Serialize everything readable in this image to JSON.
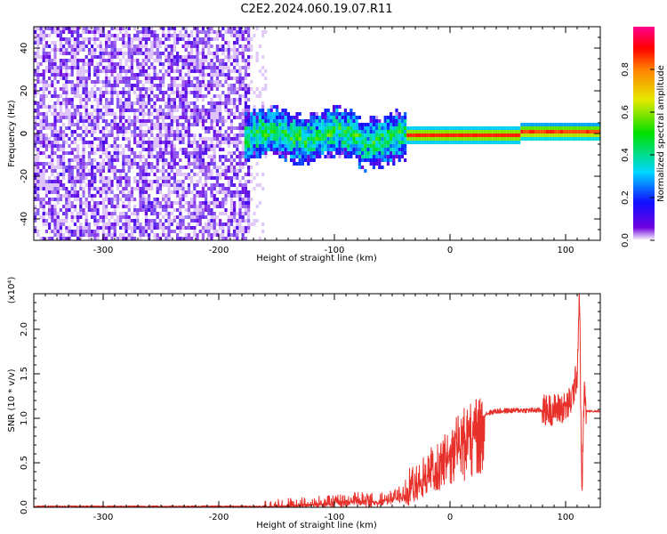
{
  "figure": {
    "title": "C2E2.2024.060.19.07.R11"
  },
  "chart_data": [
    {
      "type": "heatmap",
      "xlabel": "Height of straight line (km)",
      "ylabel": "Frequency (Hz)",
      "xlim": [
        -360,
        130
      ],
      "ylim": [
        -50,
        50
      ],
      "x_ticks": [
        -300,
        -200,
        -100,
        0,
        100
      ],
      "y_ticks": [
        -40,
        -20,
        0,
        20,
        40
      ],
      "colorbar": {
        "label": "Normalized spectral amplitude",
        "range": [
          0,
          1
        ],
        "ticks": [
          "0.0",
          "0.2",
          "0.4",
          "0.6",
          "0.8"
        ],
        "colormap": "rainbow (purple to magenta)"
      },
      "regions": [
        {
          "name": "broadband noise",
          "x_range": [
            -360,
            -175
          ],
          "freq_range": [
            -50,
            50
          ],
          "amplitude": 0.1
        },
        {
          "name": "noisy tail",
          "x_range": [
            -175,
            -160
          ],
          "freq_range": [
            -50,
            50
          ],
          "amplitude": 0.05
        },
        {
          "name": "signal onset",
          "x_range": [
            -180,
            -40
          ],
          "freq_center": 0,
          "freq_halfwidth": 9,
          "amplitude": 0.35
        },
        {
          "name": "carrier",
          "x_range": [
            -40,
            130
          ],
          "freq_center": 0,
          "freq_halfwidth": 3,
          "amplitude": 0.75
        }
      ]
    },
    {
      "type": "line",
      "xlabel": "Height of straight line (km)",
      "ylabel": "SNR (10 * v/v)",
      "y_scale_label": "(x10⁴)",
      "xlim": [
        -360,
        130
      ],
      "ylim": [
        0,
        2.4
      ],
      "x_ticks": [
        -300,
        -200,
        -100,
        0,
        100
      ],
      "y_ticks": [
        0.0,
        0.5,
        1.0,
        1.5,
        2.0
      ],
      "line_color": "#e8302a",
      "series": [
        {
          "x": [
            -360,
            -300,
            -200,
            -160,
            -130,
            -100,
            -80,
            -60,
            -50,
            -40,
            -30,
            -20,
            -10,
            0,
            10,
            20,
            30,
            40,
            60,
            80,
            90,
            100,
            105,
            110,
            112,
            114,
            116,
            118,
            120,
            130
          ],
          "y": [
            0.01,
            0.01,
            0.01,
            0.01,
            0.03,
            0.06,
            0.09,
            0.08,
            0.12,
            0.18,
            0.28,
            0.42,
            0.55,
            0.72,
            0.87,
            0.98,
            1.05,
            1.08,
            1.09,
            1.09,
            1.1,
            1.12,
            1.2,
            1.5,
            2.45,
            0.1,
            1.3,
            1.08,
            1.08,
            1.08
          ]
        }
      ]
    }
  ]
}
